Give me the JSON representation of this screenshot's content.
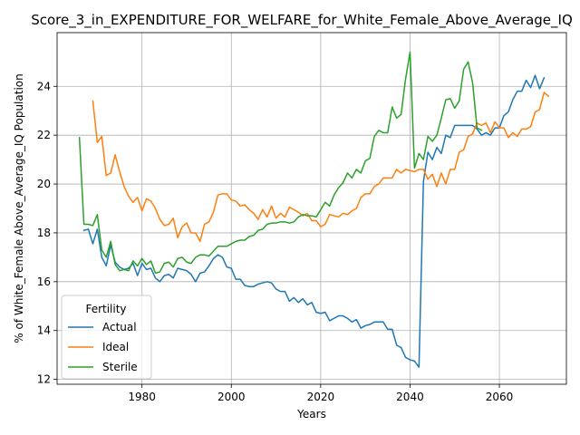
{
  "chart_data": {
    "type": "line",
    "title": "Score_3_in_EXPENDITURE_FOR_WELFARE_for_White_Female_Above_Average_IQ",
    "xlabel": "Years",
    "ylabel": "% of White_Female Above_Average_IQ Population",
    "xlim": [
      1961,
      2075
    ],
    "ylim": [
      11.8,
      26.2
    ],
    "xticks": [
      1980,
      2000,
      2020,
      2040,
      2060
    ],
    "yticks": [
      12,
      14,
      16,
      18,
      20,
      22,
      24
    ],
    "grid": true,
    "legend": {
      "title": "Fertility",
      "placement": "lower-left"
    },
    "series": [
      {
        "name": "Actual",
        "color": "#1f77b4",
        "x_start": 1967,
        "values": [
          18.1,
          18.15,
          17.55,
          18.15,
          17.0,
          16.65,
          17.5,
          16.8,
          16.6,
          16.5,
          16.55,
          16.75,
          16.25,
          16.75,
          16.5,
          16.55,
          16.15,
          16.0,
          16.25,
          16.3,
          16.15,
          16.55,
          16.5,
          16.45,
          16.3,
          16.0,
          16.35,
          16.4,
          16.65,
          16.95,
          17.1,
          17.0,
          16.6,
          16.55,
          16.1,
          16.1,
          15.85,
          15.8,
          15.8,
          15.9,
          15.95,
          16.0,
          15.95,
          15.7,
          15.6,
          15.6,
          15.2,
          15.35,
          15.15,
          15.3,
          15.05,
          15.15,
          14.75,
          14.7,
          14.75,
          14.4,
          14.5,
          14.6,
          14.6,
          14.5,
          14.35,
          14.45,
          14.1,
          14.2,
          14.25,
          14.35,
          14.35,
          14.35,
          14.05,
          14.05,
          13.4,
          13.3,
          12.9,
          12.8,
          12.75,
          12.5,
          20.1,
          21.3,
          21.0,
          21.5,
          21.25,
          22.0,
          21.9,
          22.4,
          22.4,
          22.4,
          22.4,
          22.4,
          22.25,
          22.0,
          22.1,
          22.0,
          22.3,
          22.3,
          22.8,
          22.95,
          23.45,
          23.8,
          23.8,
          24.25,
          23.95,
          24.45,
          23.9,
          24.35
        ]
      },
      {
        "name": "Ideal",
        "color": "#ff7f0e",
        "x_start": 1969,
        "values": [
          23.4,
          21.7,
          21.95,
          20.35,
          20.45,
          21.2,
          20.5,
          19.9,
          19.5,
          19.25,
          19.45,
          18.9,
          19.4,
          19.3,
          19.0,
          18.55,
          18.3,
          18.35,
          18.6,
          17.8,
          18.25,
          18.4,
          18.0,
          18.0,
          17.65,
          18.35,
          18.45,
          18.85,
          19.55,
          19.6,
          19.6,
          19.35,
          19.3,
          19.1,
          19.15,
          18.95,
          18.8,
          18.55,
          18.95,
          18.65,
          19.1,
          18.6,
          18.8,
          18.65,
          19.05,
          18.95,
          18.85,
          18.7,
          18.8,
          18.5,
          18.5,
          18.25,
          18.35,
          18.75,
          18.7,
          18.65,
          18.8,
          18.75,
          18.9,
          19.0,
          19.45,
          19.6,
          19.6,
          19.9,
          20.0,
          20.25,
          20.25,
          20.25,
          20.6,
          20.45,
          20.6,
          20.55,
          20.5,
          20.6,
          20.6,
          20.2,
          20.4,
          19.9,
          20.45,
          20.0,
          20.6,
          20.6,
          21.3,
          21.4,
          21.95,
          22.05,
          22.5,
          22.4,
          22.5,
          22.1,
          22.55,
          22.3,
          22.3,
          21.9,
          22.1,
          21.95,
          22.25,
          22.25,
          22.35,
          22.95,
          23.05,
          23.75,
          23.6
        ]
      },
      {
        "name": "Sterile",
        "color": "#2ca02c",
        "x_start": 1966,
        "values": [
          21.9,
          18.35,
          18.35,
          18.3,
          18.75,
          17.3,
          17.0,
          17.65,
          16.7,
          16.45,
          16.5,
          16.45,
          16.85,
          16.65,
          16.95,
          16.7,
          16.85,
          16.35,
          16.4,
          16.75,
          16.8,
          16.6,
          16.95,
          17.0,
          16.8,
          16.75,
          17.0,
          17.1,
          17.1,
          17.05,
          17.25,
          17.45,
          17.45,
          17.45,
          17.55,
          17.65,
          17.7,
          17.7,
          17.85,
          17.9,
          18.1,
          18.15,
          18.35,
          18.4,
          18.4,
          18.45,
          18.45,
          18.4,
          18.45,
          18.65,
          18.75,
          18.7,
          18.7,
          18.65,
          18.95,
          19.25,
          19.1,
          19.55,
          19.85,
          20.05,
          20.45,
          20.25,
          20.6,
          20.45,
          20.95,
          21.05,
          21.95,
          22.2,
          22.1,
          22.1,
          23.15,
          22.7,
          22.85,
          24.3,
          25.4,
          20.65,
          21.25,
          21.0,
          21.95,
          21.75,
          22.0,
          22.7,
          23.45,
          23.5,
          23.1,
          23.4,
          24.7,
          25.0,
          24.15,
          22.3,
          22.2
        ]
      }
    ]
  }
}
